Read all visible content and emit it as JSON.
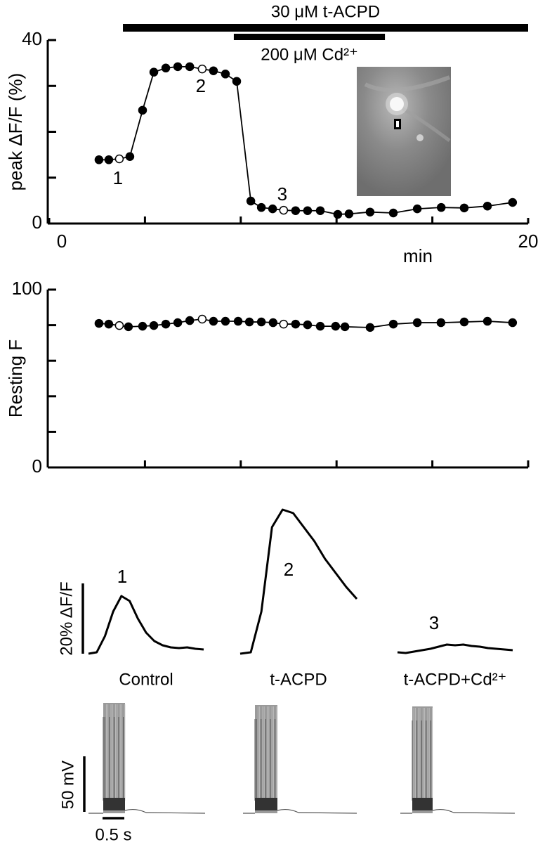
{
  "chart_data": [
    {
      "type": "line",
      "y_label": "peak ΔF/F (%)",
      "x_label": "min",
      "xlim": [
        0,
        20
      ],
      "xticks": [
        0,
        20
      ],
      "xminorticks": [
        4,
        8,
        12,
        16
      ],
      "ylim": [
        0,
        40
      ],
      "yticks": [
        0,
        40
      ],
      "yminorticks": [
        10,
        20,
        30
      ],
      "series": [
        {
          "color": "#000000",
          "x": [
            2.08,
            2.49,
            2.93,
            3.37,
            3.9,
            4.37,
            4.87,
            5.37,
            5.87,
            6.39,
            6.86,
            7.36,
            7.83,
            8.42,
            8.86,
            9.33,
            9.79,
            10.29,
            10.79,
            11.32,
            12.05,
            12.52,
            13.4,
            14.37,
            15.37,
            16.37,
            17.33,
            18.3,
            19.35
          ],
          "values": [
            13.9,
            13.9,
            14.1,
            14.6,
            24.7,
            33,
            33.9,
            34.2,
            34.2,
            33.7,
            33.3,
            32.6,
            31,
            4.9,
            3.5,
            3.2,
            2.9,
            2.8,
            2.8,
            2.8,
            2,
            2.1,
            2.5,
            2.3,
            3.2,
            3.5,
            3.4,
            3.8,
            4.6
          ]
        }
      ],
      "open_markers": [
        2,
        9,
        16
      ],
      "annotations": [
        {
          "text": "1",
          "index": 2
        },
        {
          "text": "2",
          "index": 9
        },
        {
          "text": "3",
          "index": 16
        }
      ],
      "bars": [
        {
          "label": "30 μM t-ACPD",
          "start": 3.08,
          "end": 20
        },
        {
          "label": "200 μM Cd²⁺",
          "start": 7.71,
          "end": 14.02
        }
      ]
    },
    {
      "type": "line",
      "y_label": "Resting F",
      "xlim": [
        0,
        20
      ],
      "xminorticks": [
        4,
        8,
        12,
        16,
        20
      ],
      "ylim": [
        0,
        100
      ],
      "yticks": [
        0,
        100
      ],
      "yminorticks": [
        20,
        40,
        60,
        80
      ],
      "series": [
        {
          "color": "#000000",
          "x": [
            2.08,
            2.49,
            2.93,
            3.31,
            3.9,
            4.37,
            4.87,
            5.37,
            5.87,
            6.39,
            6.86,
            7.36,
            7.89,
            8.36,
            8.86,
            9.35,
            9.79,
            10.29,
            10.79,
            11.32,
            11.96,
            12.35,
            13.4,
            14.37,
            15.37,
            16.36,
            17.33,
            18.3,
            19.35
          ],
          "values": [
            81,
            80.6,
            79.8,
            79.1,
            79.4,
            79.8,
            80.6,
            81.4,
            82.6,
            83.4,
            82.2,
            82.2,
            82.2,
            81.8,
            81.8,
            81.4,
            80.6,
            80.6,
            80.2,
            79.4,
            79.4,
            79.1,
            78.7,
            80.6,
            81.4,
            81.4,
            81.8,
            82.2,
            81.4
          ]
        }
      ],
      "open_markers": [
        2,
        9,
        16
      ]
    },
    {
      "type": "traces",
      "series": [
        {
          "name": "Control",
          "label": "1",
          "color": "#000000",
          "values": [
            0,
            0.4,
            5,
            12,
            16.4,
            15,
            10,
            6,
            3.6,
            2.4,
            1.8,
            1.6,
            1.8,
            1.4,
            1.2
          ]
        },
        {
          "name": "t-ACPD",
          "label": "2",
          "color": "#000000",
          "values": [
            0,
            0.4,
            12,
            36,
            41,
            40,
            36,
            32,
            27,
            23,
            19,
            15.6
          ]
        },
        {
          "name": "t-ACPD+Cd²⁺",
          "label": "3",
          "color": "#000000",
          "values": [
            0.4,
            0.2,
            0.6,
            1,
            1.4,
            2,
            2.6,
            2.4,
            2.6,
            2.2,
            2,
            1.6,
            1.4,
            1.2,
            1
          ]
        }
      ],
      "scalebar_y": {
        "value": 20,
        "label": "20% ΔF/F"
      }
    },
    {
      "type": "voltage",
      "scalebar_y": {
        "value": 50,
        "label": "50 mV"
      },
      "scalebar_x": {
        "value": 0.5,
        "label": "0.5 s"
      }
    }
  ]
}
